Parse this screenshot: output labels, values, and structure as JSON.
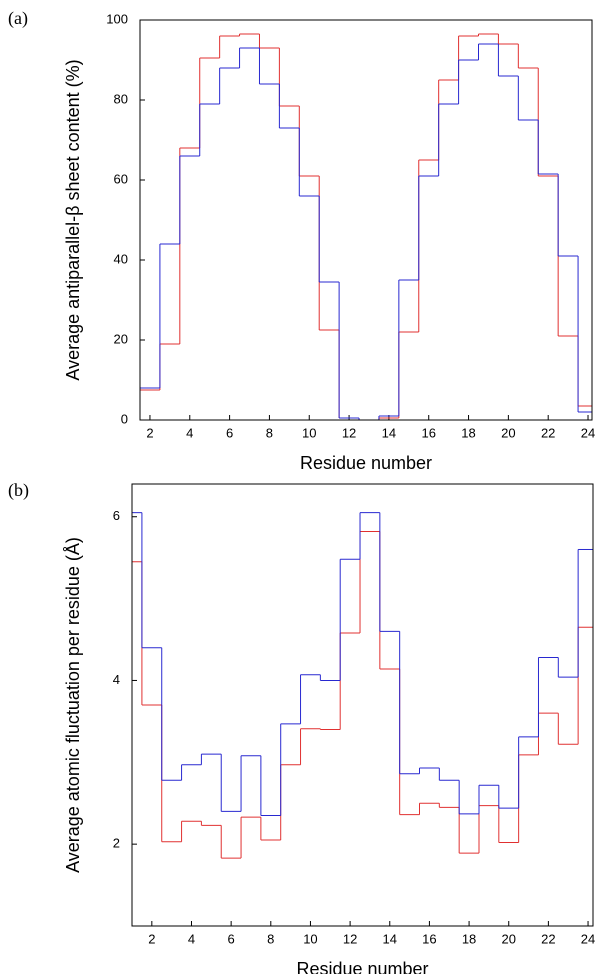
{
  "chart_data": [
    {
      "type": "step",
      "label": "(a)",
      "x_label": "Residue number",
      "y_label": "Average antiparallel-β sheet content (%)",
      "x": [
        2,
        3,
        4,
        5,
        6,
        7,
        8,
        9,
        10,
        11,
        12,
        13,
        14,
        15,
        16,
        17,
        18,
        19,
        20,
        21,
        22,
        23,
        24
      ],
      "series": [
        {
          "color": "#e03030",
          "values": [
            7.5,
            19,
            68,
            90.5,
            96,
            96.5,
            93,
            78.5,
            61,
            22.5,
            0.5,
            0,
            0.5,
            22,
            65,
            85,
            96,
            96.5,
            94,
            88,
            61,
            21,
            3.5
          ]
        },
        {
          "color": "#2828d0",
          "values": [
            8,
            44,
            66,
            79,
            88,
            93,
            84,
            73,
            56,
            34.5,
            0.5,
            0,
            1,
            35,
            61,
            79,
            90,
            94,
            86,
            75,
            61.5,
            41,
            2
          ]
        }
      ],
      "xlim": [
        1.5,
        24.2
      ],
      "ylim": [
        0,
        100
      ],
      "xticks": [
        2,
        4,
        6,
        8,
        10,
        12,
        14,
        16,
        18,
        20,
        22,
        24
      ],
      "yticks": [
        0,
        20,
        40,
        60,
        80,
        100
      ]
    },
    {
      "type": "step",
      "label": "(b)",
      "x_label": "Residue number",
      "y_label": "Average atomic fluctuation per residue (Å)",
      "x": [
        1,
        2,
        3,
        4,
        5,
        6,
        7,
        8,
        9,
        10,
        11,
        12,
        13,
        14,
        15,
        16,
        17,
        18,
        19,
        20,
        21,
        22,
        23,
        24
      ],
      "series": [
        {
          "color": "#e03030",
          "values": [
            5.45,
            3.7,
            2.03,
            2.28,
            2.23,
            1.83,
            2.33,
            2.05,
            2.97,
            3.41,
            3.4,
            4.58,
            5.82,
            4.14,
            2.36,
            2.5,
            2.45,
            1.89,
            2.47,
            2.02,
            3.09,
            3.6,
            3.22,
            4.65
          ]
        },
        {
          "color": "#2828d0",
          "values": [
            6.05,
            4.4,
            2.78,
            2.97,
            3.1,
            2.4,
            3.08,
            2.35,
            3.47,
            4.07,
            4.0,
            5.48,
            6.05,
            4.6,
            2.86,
            2.93,
            2.78,
            2.37,
            2.72,
            2.44,
            3.31,
            4.28,
            4.04,
            5.6
          ]
        }
      ],
      "xlim": [
        1,
        24.25
      ],
      "ylim": [
        1,
        6.4
      ],
      "xticks": [
        2,
        4,
        6,
        8,
        10,
        12,
        14,
        16,
        18,
        20,
        22,
        24
      ],
      "yticks": [
        2,
        4,
        6
      ]
    }
  ]
}
